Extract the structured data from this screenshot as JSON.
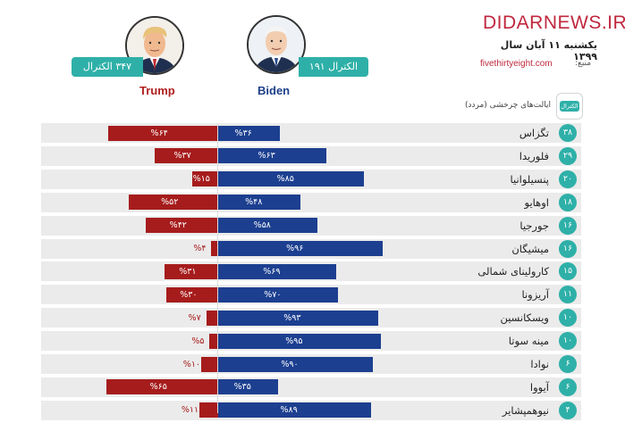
{
  "header": {
    "brand": "DIDARNEWS.IR",
    "date": "یکشنبه ۱۱ آبان سال ۱۳۹۹",
    "source_label": "منبع:",
    "source": "fivethirtyeight.com"
  },
  "candidates": {
    "biden": {
      "name": "Biden",
      "badge": "الکترال ۱۹۱",
      "portrait_icon": "biden-portrait-icon"
    },
    "trump": {
      "name": "Trump",
      "badge": "۳۴۷ الکترال",
      "portrait_icon": "trump-portrait-icon"
    }
  },
  "table_header": {
    "ev_label": "الکترال",
    "state_label": "ایالت‌های چرخشی (مردد)"
  },
  "colors": {
    "biden": "#1c3f90",
    "trump": "#a61c1c",
    "accent": "#2eb0a8",
    "brand": "#c0283e"
  },
  "chart_data": {
    "type": "bar",
    "categories": [
      "تگزاس",
      "فلوریدا",
      "پنسیلوانیا",
      "اوهایو",
      "جورجیا",
      "میشیگان",
      "کارولینای شمالی",
      "آریزونا",
      "ویسکانسین",
      "مینه سوتا",
      "نوادا",
      "آیووا",
      "نیوهمپشایر"
    ],
    "electoral_votes": [
      "۳۸",
      "۲۹",
      "۲۰",
      "۱۸",
      "۱۶",
      "۱۶",
      "۱۵",
      "۱۱",
      "۱۰",
      "۱۰",
      "۶",
      "۶",
      "۴"
    ],
    "series": [
      {
        "name": "Biden",
        "values": [
          36,
          63,
          85,
          48,
          58,
          96,
          69,
          70,
          93,
          95,
          90,
          35,
          89
        ],
        "labels": [
          "%۳۶",
          "%۶۳",
          "%۸۵",
          "%۴۸",
          "%۵۸",
          "%۹۶",
          "%۶۹",
          "%۷۰",
          "%۹۳",
          "%۹۵",
          "%۹۰",
          "%۳۵",
          "%۸۹"
        ]
      },
      {
        "name": "Trump",
        "values": [
          64,
          37,
          15,
          52,
          42,
          4,
          31,
          30,
          7,
          5,
          10,
          65,
          11
        ],
        "labels": [
          "%۶۴",
          "%۳۷",
          "%۱۵",
          "%۵۲",
          "%۴۲",
          "%۴",
          "%۳۱",
          "%۳۰",
          "%۷",
          "%۵",
          "%۱۰",
          "%۶۵",
          "%۱۱"
        ]
      }
    ],
    "xlim": [
      0,
      100
    ]
  }
}
